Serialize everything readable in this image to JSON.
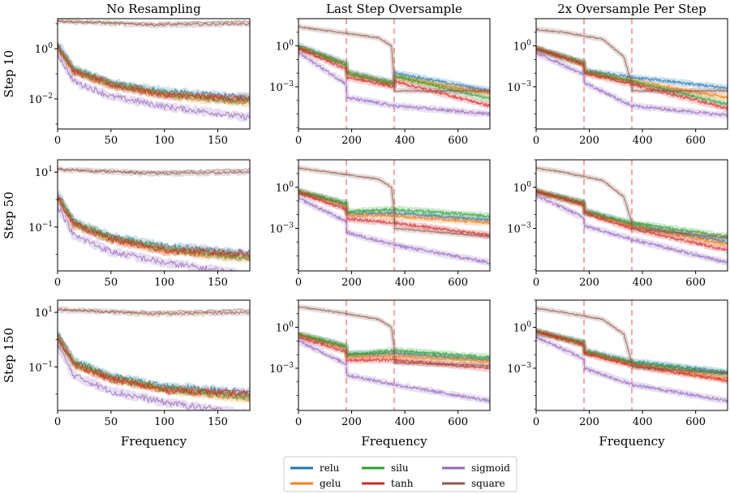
{
  "chart_data": {
    "type": "line",
    "layout": "3x3 grid of log-scale line plots",
    "column_titles": [
      "No Resampling",
      "Last Step Oversample",
      "2x Oversample Per Step"
    ],
    "row_labels": [
      "Step 10",
      "Step 50",
      "Step 150"
    ],
    "xlabel": "Frequency",
    "xticks": {
      "no_resampling": [
        "0",
        "50",
        "100",
        "150"
      ],
      "oversample": [
        "0",
        "200",
        "400",
        "600"
      ]
    },
    "xlim": {
      "no_resampling": [
        0,
        180
      ],
      "oversample": [
        0,
        720
      ]
    },
    "vlines_x": [
      180,
      360
    ],
    "vline_color": "#f4a7a7",
    "panels": [
      {
        "row": 0,
        "col": 0,
        "title": "No Resampling",
        "ylabel": "Step 10",
        "ylim_log10": [
          -3.2,
          1.2
        ],
        "ytick_labels": [
          {
            "text": "10",
            "exp": "0",
            "log": 0
          },
          {
            "text": "10",
            "exp": "−2",
            "log": -2
          }
        ]
      },
      {
        "row": 0,
        "col": 1,
        "title": "Last Step Oversample",
        "ylim_log10": [
          -6.1,
          2.0
        ],
        "ytick_labels": [
          {
            "text": "10",
            "exp": "0",
            "log": 0
          },
          {
            "text": "10",
            "exp": "−3",
            "log": -3
          }
        ]
      },
      {
        "row": 0,
        "col": 2,
        "title": "2x Oversample Per Step",
        "ylim_log10": [
          -6.1,
          2.0
        ],
        "ytick_labels": [
          {
            "text": "10",
            "exp": "0",
            "log": 0
          },
          {
            "text": "10",
            "exp": "−3",
            "log": -3
          }
        ]
      },
      {
        "row": 1,
        "col": 0,
        "ylabel": "Step 50",
        "ylim_log10": [
          -2.6,
          1.45
        ],
        "ytick_labels": [
          {
            "text": "10",
            "exp": "1",
            "log": 1
          },
          {
            "text": "10",
            "exp": "−1",
            "log": -1
          }
        ]
      },
      {
        "row": 1,
        "col": 1,
        "ylim_log10": [
          -6.1,
          2.0
        ],
        "ytick_labels": [
          {
            "text": "10",
            "exp": "0",
            "log": 0
          },
          {
            "text": "10",
            "exp": "−3",
            "log": -3
          }
        ]
      },
      {
        "row": 1,
        "col": 2,
        "ylim_log10": [
          -6.1,
          2.0
        ],
        "ytick_labels": [
          {
            "text": "10",
            "exp": "0",
            "log": 0
          },
          {
            "text": "10",
            "exp": "−3",
            "log": -3
          }
        ]
      },
      {
        "row": 2,
        "col": 0,
        "ylabel": "Step 150",
        "ylim_log10": [
          -2.6,
          1.45
        ],
        "ytick_labels": [
          {
            "text": "10",
            "exp": "1",
            "log": 1
          },
          {
            "text": "10",
            "exp": "−1",
            "log": -1
          }
        ]
      },
      {
        "row": 2,
        "col": 1,
        "ylim_log10": [
          -6.1,
          2.0
        ],
        "ytick_labels": [
          {
            "text": "10",
            "exp": "0",
            "log": 0
          },
          {
            "text": "10",
            "exp": "−3",
            "log": -3
          }
        ]
      },
      {
        "row": 2,
        "col": 2,
        "ylim_log10": [
          -6.1,
          2.0
        ],
        "ytick_labels": [
          {
            "text": "10",
            "exp": "0",
            "log": 0
          },
          {
            "text": "10",
            "exp": "−3",
            "log": -3
          }
        ]
      }
    ],
    "series": [
      {
        "name": "relu",
        "color": "#1f77b4",
        "nores": [
          [
            0,
            0.2
          ],
          [
            15,
            -0.8
          ],
          [
            50,
            -1.35
          ],
          [
            100,
            -1.7
          ],
          [
            180,
            -1.95
          ]
        ],
        "row0": [
          [
            0,
            0.0
          ],
          [
            180,
            -1.3
          ],
          [
            182,
            -1.9
          ],
          [
            360,
            -2.7
          ],
          [
            362,
            -2.0
          ],
          [
            720,
            -3.3
          ]
        ],
        "row0_2x": [
          [
            0,
            -0.2
          ],
          [
            180,
            -1.2
          ],
          [
            182,
            -1.8
          ],
          [
            360,
            -2.3
          ],
          [
            720,
            -3.1
          ]
        ],
        "row1": [
          [
            0,
            -0.3
          ],
          [
            180,
            -1.2
          ],
          [
            182,
            -1.9
          ],
          [
            360,
            -1.9
          ],
          [
            720,
            -2.4
          ]
        ],
        "row1_2x": [
          [
            0,
            -0.3
          ],
          [
            180,
            -1.1
          ],
          [
            182,
            -1.7
          ],
          [
            360,
            -2.7
          ],
          [
            720,
            -4.0
          ]
        ],
        "row2": [
          [
            0,
            -0.5
          ],
          [
            180,
            -1.4
          ],
          [
            182,
            -2.0
          ],
          [
            360,
            -1.9
          ],
          [
            720,
            -2.4
          ]
        ],
        "row2_2x": [
          [
            0,
            -0.3
          ],
          [
            180,
            -1.1
          ],
          [
            182,
            -1.7
          ],
          [
            360,
            -2.5
          ],
          [
            720,
            -3.3
          ]
        ]
      },
      {
        "name": "gelu",
        "color": "#ff7f0e",
        "nores": [
          [
            0,
            0.1
          ],
          [
            15,
            -0.9
          ],
          [
            50,
            -1.45
          ],
          [
            100,
            -1.85
          ],
          [
            180,
            -2.15
          ]
        ],
        "row0": [
          [
            0,
            -0.1
          ],
          [
            180,
            -1.4
          ],
          [
            182,
            -2.0
          ],
          [
            360,
            -2.8
          ],
          [
            362,
            -2.3
          ],
          [
            720,
            -3.5
          ]
        ],
        "row0_2x": [
          [
            0,
            -0.2
          ],
          [
            180,
            -1.3
          ],
          [
            182,
            -1.9
          ],
          [
            360,
            -2.6
          ],
          [
            720,
            -3.8
          ]
        ],
        "row1": [
          [
            0,
            -0.3
          ],
          [
            180,
            -1.3
          ],
          [
            182,
            -2.0
          ],
          [
            360,
            -2.1
          ],
          [
            720,
            -2.6
          ]
        ],
        "row1_2x": [
          [
            0,
            -0.3
          ],
          [
            180,
            -1.2
          ],
          [
            182,
            -1.8
          ],
          [
            360,
            -2.8
          ],
          [
            720,
            -4.2
          ]
        ],
        "row2": [
          [
            0,
            -0.5
          ],
          [
            180,
            -1.5
          ],
          [
            182,
            -2.1
          ],
          [
            360,
            -2.1
          ],
          [
            720,
            -2.5
          ]
        ],
        "row2_2x": [
          [
            0,
            -0.3
          ],
          [
            180,
            -1.2
          ],
          [
            182,
            -1.8
          ],
          [
            360,
            -2.7
          ],
          [
            720,
            -3.8
          ]
        ]
      },
      {
        "name": "silu",
        "color": "#2ca02c",
        "nores": [
          [
            0,
            0.1
          ],
          [
            15,
            -0.85
          ],
          [
            50,
            -1.4
          ],
          [
            100,
            -1.8
          ],
          [
            180,
            -2.1
          ]
        ],
        "row0": [
          [
            0,
            -0.1
          ],
          [
            180,
            -1.4
          ],
          [
            182,
            -2.0
          ],
          [
            360,
            -2.8
          ],
          [
            362,
            -2.2
          ],
          [
            720,
            -3.9
          ]
        ],
        "row0_2x": [
          [
            0,
            -0.2
          ],
          [
            180,
            -1.3
          ],
          [
            182,
            -1.9
          ],
          [
            360,
            -2.6
          ],
          [
            720,
            -4.3
          ]
        ],
        "row1": [
          [
            0,
            -0.3
          ],
          [
            180,
            -1.2
          ],
          [
            182,
            -1.8
          ],
          [
            360,
            -1.6
          ],
          [
            720,
            -2.1
          ]
        ],
        "row1_2x": [
          [
            0,
            -0.3
          ],
          [
            180,
            -1.2
          ],
          [
            182,
            -1.8
          ],
          [
            360,
            -2.6
          ],
          [
            720,
            -3.6
          ]
        ],
        "row2": [
          [
            0,
            -0.5
          ],
          [
            180,
            -1.4
          ],
          [
            182,
            -2.0
          ],
          [
            360,
            -1.7
          ],
          [
            720,
            -2.2
          ]
        ],
        "row2_2x": [
          [
            0,
            -0.3
          ],
          [
            180,
            -1.2
          ],
          [
            182,
            -1.8
          ],
          [
            360,
            -2.6
          ],
          [
            720,
            -3.4
          ]
        ]
      },
      {
        "name": "tanh",
        "color": "#d62728",
        "nores": [
          [
            0,
            0.1
          ],
          [
            15,
            -0.9
          ],
          [
            50,
            -1.45
          ],
          [
            100,
            -1.85
          ],
          [
            180,
            -2.0
          ]
        ],
        "row0": [
          [
            0,
            -0.2
          ],
          [
            180,
            -1.7
          ],
          [
            182,
            -2.3
          ],
          [
            360,
            -3.0
          ],
          [
            362,
            -2.6
          ],
          [
            720,
            -4.4
          ]
        ],
        "row0_2x": [
          [
            0,
            -0.2
          ],
          [
            180,
            -1.4
          ],
          [
            182,
            -2.0
          ],
          [
            360,
            -2.8
          ],
          [
            720,
            -4.6
          ]
        ],
        "row1": [
          [
            0,
            -0.4
          ],
          [
            180,
            -1.6
          ],
          [
            182,
            -2.3
          ],
          [
            360,
            -2.6
          ],
          [
            720,
            -3.5
          ]
        ],
        "row1_2x": [
          [
            0,
            -0.3
          ],
          [
            180,
            -1.3
          ],
          [
            182,
            -1.9
          ],
          [
            360,
            -3.0
          ],
          [
            720,
            -4.6
          ]
        ],
        "row2": [
          [
            0,
            -0.7
          ],
          [
            180,
            -1.8
          ],
          [
            182,
            -2.4
          ],
          [
            360,
            -2.4
          ],
          [
            720,
            -3.0
          ]
        ],
        "row2_2x": [
          [
            0,
            -0.3
          ],
          [
            180,
            -1.3
          ],
          [
            182,
            -1.9
          ],
          [
            360,
            -2.8
          ],
          [
            720,
            -3.9
          ]
        ]
      },
      {
        "name": "sigmoid",
        "color": "#9467bd",
        "nores": [
          [
            0,
            -0.2
          ],
          [
            15,
            -1.3
          ],
          [
            50,
            -1.9
          ],
          [
            100,
            -2.3
          ],
          [
            180,
            -2.75
          ]
        ],
        "row0": [
          [
            0,
            -0.5
          ],
          [
            180,
            -2.8
          ],
          [
            182,
            -3.8
          ],
          [
            360,
            -4.4
          ],
          [
            720,
            -5.0
          ]
        ],
        "row0_2x": [
          [
            0,
            -0.5
          ],
          [
            180,
            -2.1
          ],
          [
            182,
            -2.7
          ],
          [
            360,
            -4.4
          ],
          [
            720,
            -5.1
          ]
        ],
        "row1": [
          [
            0,
            -0.8
          ],
          [
            180,
            -2.5
          ],
          [
            182,
            -3.3
          ],
          [
            360,
            -4.2
          ],
          [
            720,
            -5.5
          ]
        ],
        "row1_2x": [
          [
            0,
            -0.6
          ],
          [
            180,
            -2.2
          ],
          [
            182,
            -2.8
          ],
          [
            360,
            -3.8
          ],
          [
            720,
            -5.5
          ]
        ],
        "row2": [
          [
            0,
            -1.0
          ],
          [
            180,
            -2.7
          ],
          [
            182,
            -3.5
          ],
          [
            360,
            -4.2
          ],
          [
            720,
            -5.4
          ]
        ],
        "row2_2x": [
          [
            0,
            -0.7
          ],
          [
            180,
            -2.3
          ],
          [
            182,
            -3.0
          ],
          [
            360,
            -4.2
          ],
          [
            720,
            -5.4
          ]
        ]
      },
      {
        "name": "square",
        "color": "#8c564b",
        "nores": [
          [
            0,
            1.1
          ],
          [
            90,
            0.95
          ],
          [
            180,
            1.0
          ]
        ],
        "nores_r": [
          [
            0,
            1.1
          ],
          [
            90,
            1.0
          ],
          [
            180,
            1.1
          ]
        ],
        "row0": [
          [
            0,
            1.4
          ],
          [
            150,
            1.0
          ],
          [
            300,
            0.6
          ],
          [
            350,
            0.0
          ],
          [
            360,
            -2.5
          ],
          [
            362,
            -3.3
          ],
          [
            720,
            -3.3
          ]
        ],
        "row0_2x": [
          [
            0,
            1.2
          ],
          [
            100,
            1.0
          ],
          [
            250,
            0.5
          ],
          [
            330,
            -0.8
          ],
          [
            360,
            -2.8
          ],
          [
            362,
            -3.3
          ],
          [
            720,
            -3.3
          ]
        ],
        "row1": [
          [
            0,
            1.4
          ],
          [
            150,
            1.0
          ],
          [
            300,
            0.6
          ],
          [
            350,
            0.0
          ],
          [
            360,
            -1.8
          ],
          [
            362,
            -3.0
          ],
          [
            720,
            -3.6
          ]
        ],
        "row1_2x": [
          [
            0,
            1.4
          ],
          [
            100,
            1.1
          ],
          [
            250,
            0.5
          ],
          [
            330,
            -0.7
          ],
          [
            360,
            -2.6
          ],
          [
            362,
            -3.0
          ],
          [
            720,
            -3.7
          ]
        ],
        "row2": [
          [
            0,
            1.5
          ],
          [
            150,
            1.1
          ],
          [
            300,
            0.6
          ],
          [
            350,
            0.0
          ],
          [
            360,
            -1.5
          ],
          [
            362,
            -2.6
          ],
          [
            720,
            -2.8
          ]
        ],
        "row2_2x": [
          [
            0,
            1.4
          ],
          [
            100,
            1.1
          ],
          [
            250,
            0.6
          ],
          [
            330,
            -0.5
          ],
          [
            360,
            -2.6
          ],
          [
            362,
            -2.9
          ],
          [
            720,
            -3.4
          ]
        ]
      }
    ],
    "legend": {
      "placement": "bottom-center",
      "columns": [
        [
          "relu",
          "gelu"
        ],
        [
          "silu",
          "tanh"
        ],
        [
          "sigmoid",
          "square"
        ]
      ]
    }
  }
}
